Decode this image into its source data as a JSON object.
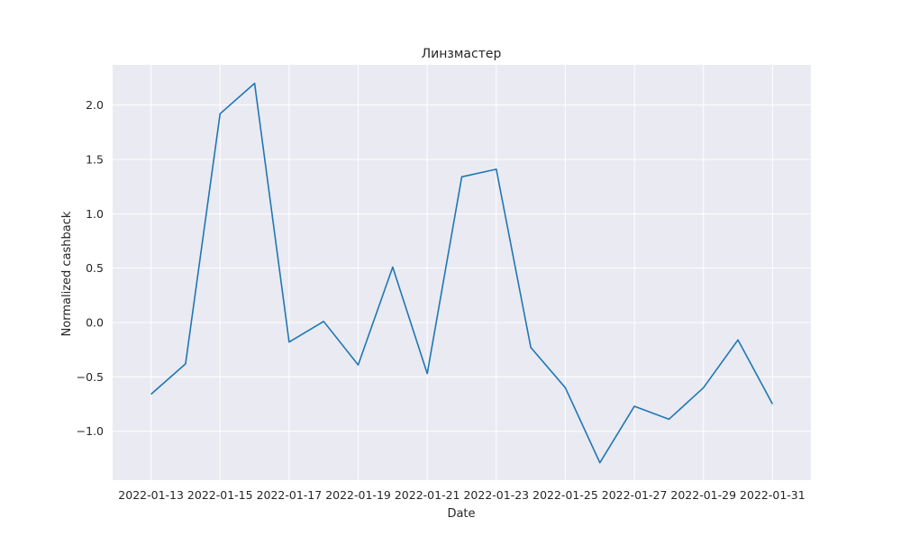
{
  "chart_data": {
    "type": "line",
    "title": "Линзмастер",
    "xlabel": "Date",
    "ylabel": "Normalized cashback",
    "x": [
      "2022-01-13",
      "2022-01-14",
      "2022-01-15",
      "2022-01-16",
      "2022-01-17",
      "2022-01-18",
      "2022-01-19",
      "2022-01-20",
      "2022-01-21",
      "2022-01-22",
      "2022-01-23",
      "2022-01-24",
      "2022-01-25",
      "2022-01-26",
      "2022-01-27",
      "2022-01-28",
      "2022-01-29",
      "2022-01-30",
      "2022-01-31"
    ],
    "series": [
      {
        "values": [
          -0.66,
          -0.38,
          1.92,
          2.2,
          -0.18,
          0.01,
          -0.39,
          0.51,
          -0.47,
          1.34,
          1.41,
          -0.23,
          -0.6,
          -1.29,
          -0.77,
          -0.89,
          -0.6,
          -0.16,
          -0.75
        ]
      }
    ],
    "xticks": [
      "2022-01-13",
      "2022-01-15",
      "2022-01-17",
      "2022-01-19",
      "2022-01-21",
      "2022-01-23",
      "2022-01-25",
      "2022-01-27",
      "2022-01-29",
      "2022-01-31"
    ],
    "yticks": [
      2.0,
      1.5,
      1.0,
      0.5,
      0.0,
      -0.5,
      -1.0
    ],
    "ytick_labels": [
      "2.0",
      "1.5",
      "1.0",
      "0.5",
      "0.0",
      "−0.5",
      "−1.0"
    ],
    "xlim": [
      "2022-01-13",
      "2022-01-31"
    ],
    "ylim": [
      -1.45,
      2.37
    ],
    "grid": true,
    "colors": {
      "line": "#1f77b4",
      "plot_background": "#eaeaf2",
      "grid": "#ffffff"
    }
  }
}
